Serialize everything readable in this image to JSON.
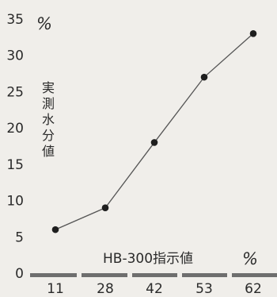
{
  "chart_data": {
    "type": "line",
    "x": [
      11,
      28,
      42,
      53,
      62
    ],
    "x_tick_labels": [
      "11",
      "28",
      "42",
      "53",
      "62"
    ],
    "y": [
      6,
      9,
      18,
      27,
      33
    ],
    "ylim": [
      0,
      35
    ],
    "y_ticks": [
      0,
      5,
      10,
      15,
      20,
      25,
      30,
      35
    ],
    "y_tick_labels": [
      "0",
      "5",
      "10",
      "15",
      "20",
      "25",
      "30",
      "35"
    ],
    "ylabel_chars": [
      "実",
      "測",
      "水",
      "分",
      "値"
    ],
    "ylabel": "実測水分値",
    "y_unit": "%",
    "xlabel": "HB-300指示値",
    "x_unit": "%",
    "grid": false,
    "line_color": "#555555",
    "marker_color": "#1e1e1e",
    "axis_color": "#6e6e6e"
  }
}
